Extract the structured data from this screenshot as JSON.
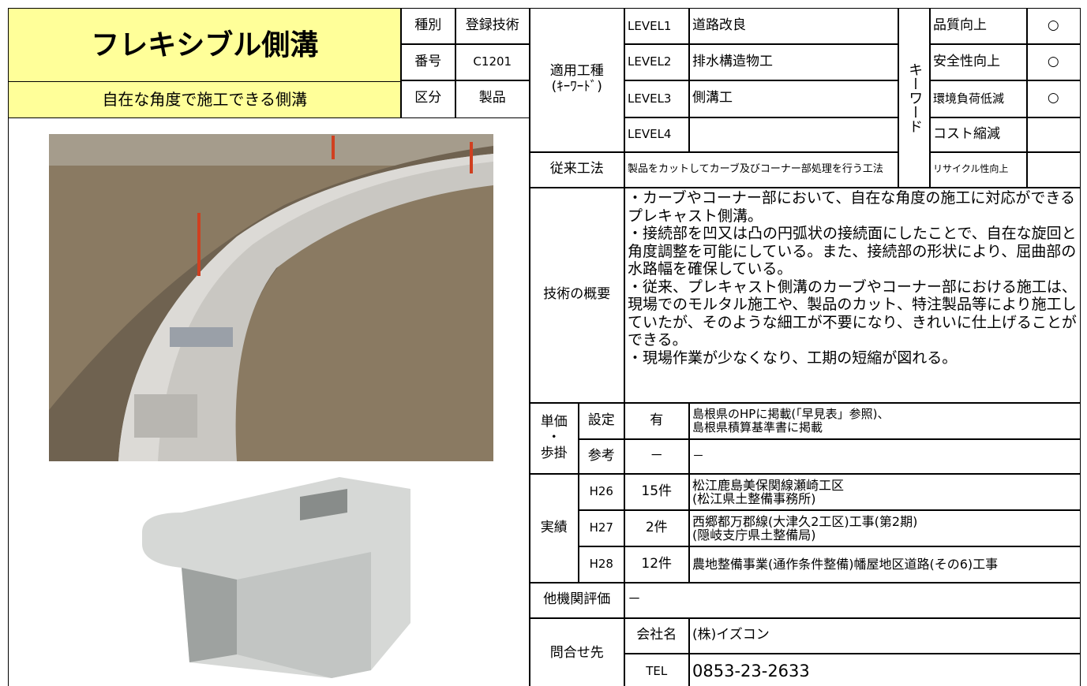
{
  "header": {
    "title": "フレキシブル側溝",
    "subtitle": "自在な角度で施工できる側溝"
  },
  "meta": [
    {
      "label": "種別",
      "value": "登録技術"
    },
    {
      "label": "番号",
      "value": "C1201"
    },
    {
      "label": "区分",
      "value": "製品"
    }
  ],
  "classification": {
    "label": "適用工種",
    "sublabel": "(ｷｰﾜｰﾄﾞ)",
    "levels": [
      {
        "label": "LEVEL1",
        "value": "道路改良"
      },
      {
        "label": "LEVEL2",
        "value": "排水構造物工"
      },
      {
        "label": "LEVEL3",
        "value": "側溝工"
      },
      {
        "label": "LEVEL4"
      }
    ]
  },
  "keywords": {
    "label": "キーワード",
    "items": [
      {
        "label": "品質向上",
        "mark": "○"
      },
      {
        "label": "安全性向上",
        "mark": "○"
      },
      {
        "label": "環境負荷低減",
        "mark": "○"
      },
      {
        "label": "コスト縮減"
      },
      {
        "label": "リサイクル性向上"
      }
    ]
  },
  "conventional": {
    "label": "従来工法",
    "text": "製品をカットしてカーブ及びコーナー部処理を行う工法"
  },
  "overview": {
    "label": "技術の概要",
    "paragraphs": [
      "・カーブやコーナー部において、自在な角度の施工に対応ができるプレキャスト側溝。",
      "・接続部を凹又は凸の円弧状の接続面にしたことで、自在な旋回と角度調整を可能にしている。また、接続部の形状により、屈曲部の水路幅を確保している。",
      "・従来、プレキャスト側溝のカーブやコーナー部における施工は、現場でのモルタル施工や、製品のカット、特注製品等により施工していたが、そのような細工が不要になり、きれいに仕上げることができる。",
      "・現場作業が少なくなり、工期の短縮が図れる。"
    ]
  },
  "price": {
    "label": [
      "単価",
      "・",
      "歩掛"
    ],
    "rows": [
      {
        "label": "設定",
        "value": "有",
        "note": [
          "島根県のHPに掲載(「早見表」参照)、",
          "島根県積算基準書に掲載"
        ]
      },
      {
        "label": "参考",
        "value": "－",
        "note": [
          "－"
        ]
      }
    ]
  },
  "records": {
    "label": "実績",
    "rows": [
      {
        "year": "H26",
        "count": "15件",
        "project": [
          "松江鹿島美保関線瀬崎工区",
          "(松江県土整備事務所)"
        ]
      },
      {
        "year": "H27",
        "count": "2件",
        "project": [
          "西郷都万郡線(大津久2工区)工事(第2期)",
          "(隠岐支庁県土整備局)"
        ]
      },
      {
        "year": "H28",
        "count": "12件",
        "project": [
          "農地整備事業(通作条件整備)幡屋地区道路(その6)工事"
        ]
      }
    ]
  },
  "other_evaluation": {
    "label": "他機関評価",
    "value": "－"
  },
  "contact": {
    "label": "問合せ先",
    "company_label": "会社名",
    "company": "(株)イズコン",
    "tel_label": "TEL",
    "tel": "0853-23-2633"
  }
}
